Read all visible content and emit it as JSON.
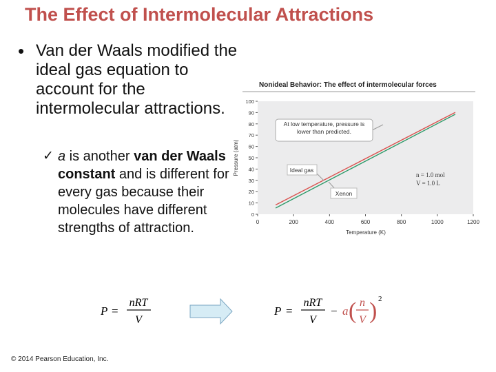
{
  "slide": {
    "title": "The Effect of Intermolecular Attractions",
    "bullet": "Van der Waals modified the ideal gas equation to account for the intermolecular attractions.",
    "sub_bullet": {
      "var": "a",
      "pre": " is another ",
      "bold": "van der Waals constant",
      "post": " and is different for every gas because their molecules have different strengths of attraction."
    },
    "footer": "© 2014 Pearson Education, Inc."
  },
  "chart_data": {
    "type": "line",
    "title": "Nonideal Behavior: The effect of intermolecular forces",
    "xlabel": "Temperature (K)",
    "ylabel": "Pressure (atm)",
    "xlim": [
      0,
      1200
    ],
    "ylim": [
      0,
      100
    ],
    "xticks": [
      0,
      200,
      400,
      600,
      800,
      1000,
      1200
    ],
    "yticks": [
      0,
      10,
      20,
      30,
      40,
      50,
      60,
      70,
      80,
      90,
      100
    ],
    "grid": false,
    "series": [
      {
        "name": "Ideal gas",
        "color": "#d9534f",
        "x": [
          100,
          1100
        ],
        "y": [
          8.2,
          90.2
        ]
      },
      {
        "name": "Xenon",
        "color": "#2e9a6a",
        "x": [
          100,
          1100
        ],
        "y": [
          5.5,
          88.5
        ]
      }
    ],
    "annotations": {
      "callout": "At low temperature, pressure is lower than predicted.",
      "ideal_label": "Ideal gas",
      "xenon_label": "Xenon",
      "n_text": "n = 1.0 mol",
      "v_text": "V = 1.0 L"
    }
  },
  "equations": {
    "ideal": {
      "lhs": "P",
      "num": "nRT",
      "den": "V"
    },
    "vdw": {
      "lhs": "P",
      "num": "nRT",
      "den": "V",
      "a": "a",
      "n": "n",
      "v": "V",
      "exp": "2"
    },
    "arrow_color": "#d6ecf5"
  }
}
